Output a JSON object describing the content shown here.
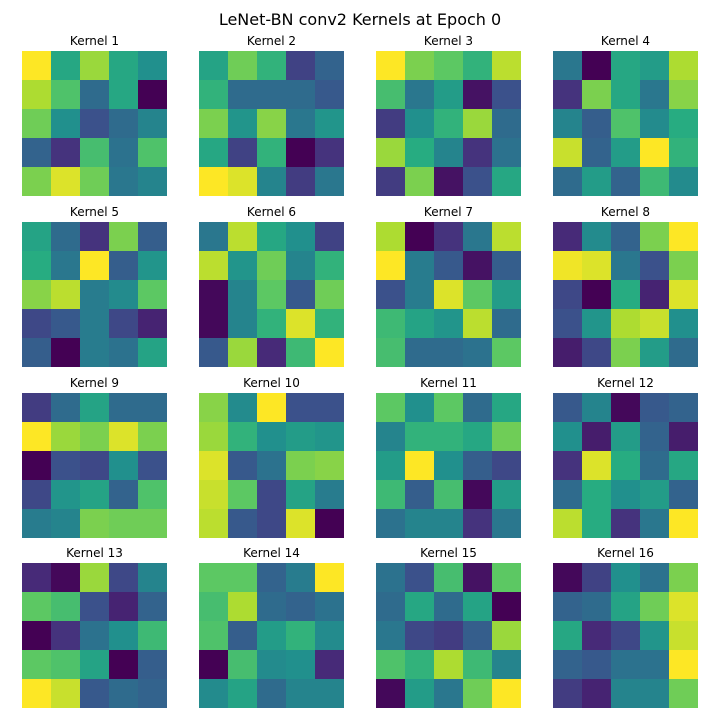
{
  "chart_data": {
    "type": "heatmap",
    "title": "LeNet-BN conv2 Kernels at Epoch 0",
    "colormap": "viridis",
    "value_range": [
      0,
      1
    ],
    "rows": 5,
    "cols": 5,
    "kernels": [
      {
        "title": "Kernel 1",
        "values": [
          [
            1.0,
            0.6,
            0.85,
            0.6,
            0.5
          ],
          [
            0.88,
            0.72,
            0.35,
            0.6,
            0.0
          ],
          [
            0.78,
            0.5,
            0.25,
            0.35,
            0.45
          ],
          [
            0.32,
            0.15,
            0.7,
            0.38,
            0.72
          ],
          [
            0.8,
            0.95,
            0.78,
            0.4,
            0.45
          ]
        ]
      },
      {
        "title": "Kernel 2",
        "values": [
          [
            0.58,
            0.78,
            0.65,
            0.2,
            0.32
          ],
          [
            0.65,
            0.35,
            0.35,
            0.35,
            0.28
          ],
          [
            0.8,
            0.52,
            0.82,
            0.4,
            0.52
          ],
          [
            0.6,
            0.2,
            0.65,
            0.0,
            0.15
          ],
          [
            1.0,
            0.95,
            0.45,
            0.18,
            0.4
          ]
        ]
      },
      {
        "title": "Kernel 3",
        "values": [
          [
            1.0,
            0.8,
            0.75,
            0.65,
            0.9
          ],
          [
            0.7,
            0.4,
            0.55,
            0.05,
            0.25
          ],
          [
            0.18,
            0.5,
            0.65,
            0.85,
            0.35
          ],
          [
            0.85,
            0.62,
            0.45,
            0.15,
            0.38
          ],
          [
            0.18,
            0.8,
            0.05,
            0.25,
            0.6
          ]
        ]
      },
      {
        "title": "Kernel 4",
        "values": [
          [
            0.4,
            0.0,
            0.6,
            0.55,
            0.88
          ],
          [
            0.15,
            0.8,
            0.6,
            0.4,
            0.82
          ],
          [
            0.45,
            0.3,
            0.72,
            0.48,
            0.62
          ],
          [
            0.92,
            0.32,
            0.55,
            1.0,
            0.65
          ],
          [
            0.35,
            0.55,
            0.32,
            0.68,
            0.48
          ]
        ]
      },
      {
        "title": "Kernel 5",
        "values": [
          [
            0.58,
            0.35,
            0.15,
            0.8,
            0.3
          ],
          [
            0.62,
            0.4,
            1.0,
            0.3,
            0.52
          ],
          [
            0.82,
            0.9,
            0.42,
            0.48,
            0.75
          ],
          [
            0.22,
            0.28,
            0.42,
            0.22,
            0.1
          ],
          [
            0.3,
            0.0,
            0.42,
            0.38,
            0.58
          ]
        ]
      },
      {
        "title": "Kernel 6",
        "values": [
          [
            0.4,
            0.9,
            0.6,
            0.5,
            0.2
          ],
          [
            0.9,
            0.52,
            0.78,
            0.45,
            0.65
          ],
          [
            0.02,
            0.45,
            0.75,
            0.28,
            0.78
          ],
          [
            0.02,
            0.45,
            0.65,
            0.95,
            0.65
          ],
          [
            0.28,
            0.85,
            0.12,
            0.68,
            1.0
          ]
        ]
      },
      {
        "title": "Kernel 7",
        "values": [
          [
            0.88,
            0.0,
            0.15,
            0.4,
            0.9
          ],
          [
            1.0,
            0.42,
            0.28,
            0.05,
            0.3
          ],
          [
            0.25,
            0.42,
            0.95,
            0.75,
            0.55
          ],
          [
            0.68,
            0.58,
            0.52,
            0.9,
            0.35
          ],
          [
            0.7,
            0.35,
            0.35,
            0.38,
            0.75
          ]
        ]
      },
      {
        "title": "Kernel 8",
        "values": [
          [
            0.12,
            0.48,
            0.32,
            0.8,
            1.0
          ],
          [
            0.98,
            0.95,
            0.4,
            0.25,
            0.8
          ],
          [
            0.22,
            0.0,
            0.62,
            0.1,
            0.95
          ],
          [
            0.25,
            0.52,
            0.88,
            0.92,
            0.5
          ],
          [
            0.08,
            0.22,
            0.8,
            0.55,
            0.35
          ]
        ]
      },
      {
        "title": "Kernel 9",
        "values": [
          [
            0.18,
            0.35,
            0.58,
            0.35,
            0.35
          ],
          [
            1.0,
            0.85,
            0.8,
            0.95,
            0.8
          ],
          [
            0.0,
            0.25,
            0.22,
            0.5,
            0.25
          ],
          [
            0.22,
            0.52,
            0.58,
            0.32,
            0.72
          ],
          [
            0.42,
            0.45,
            0.8,
            0.78,
            0.78
          ]
        ]
      },
      {
        "title": "Kernel 10",
        "values": [
          [
            0.82,
            0.48,
            1.0,
            0.25,
            0.25
          ],
          [
            0.85,
            0.65,
            0.5,
            0.55,
            0.52
          ],
          [
            0.95,
            0.28,
            0.38,
            0.8,
            0.82
          ],
          [
            0.92,
            0.75,
            0.22,
            0.58,
            0.42
          ],
          [
            0.9,
            0.28,
            0.22,
            0.95,
            0.0
          ]
        ]
      },
      {
        "title": "Kernel 11",
        "values": [
          [
            0.75,
            0.5,
            0.75,
            0.35,
            0.6
          ],
          [
            0.45,
            0.65,
            0.65,
            0.6,
            0.78
          ],
          [
            0.55,
            1.0,
            0.5,
            0.3,
            0.22
          ],
          [
            0.68,
            0.3,
            0.7,
            0.02,
            0.55
          ],
          [
            0.38,
            0.45,
            0.45,
            0.15,
            0.4
          ]
        ]
      },
      {
        "title": "Kernel 12",
        "values": [
          [
            0.28,
            0.45,
            0.02,
            0.28,
            0.32
          ],
          [
            0.5,
            0.08,
            0.55,
            0.32,
            0.08
          ],
          [
            0.15,
            0.95,
            0.62,
            0.35,
            0.6
          ],
          [
            0.35,
            0.62,
            0.5,
            0.55,
            0.32
          ],
          [
            0.9,
            0.62,
            0.15,
            0.4,
            1.0
          ]
        ]
      },
      {
        "title": "Kernel 13",
        "values": [
          [
            0.12,
            0.02,
            0.85,
            0.22,
            0.45
          ],
          [
            0.75,
            0.7,
            0.25,
            0.1,
            0.32
          ],
          [
            0.0,
            0.15,
            0.38,
            0.5,
            0.68
          ],
          [
            0.75,
            0.72,
            0.58,
            0.0,
            0.3
          ],
          [
            1.0,
            0.92,
            0.28,
            0.35,
            0.32
          ]
        ]
      },
      {
        "title": "Kernel 14",
        "values": [
          [
            0.75,
            0.75,
            0.32,
            0.42,
            1.0
          ],
          [
            0.7,
            0.88,
            0.35,
            0.32,
            0.38
          ],
          [
            0.72,
            0.3,
            0.55,
            0.65,
            0.48
          ],
          [
            0.0,
            0.7,
            0.48,
            0.5,
            0.12
          ],
          [
            0.48,
            0.58,
            0.35,
            0.45,
            0.45
          ]
        ]
      },
      {
        "title": "Kernel 15",
        "values": [
          [
            0.38,
            0.25,
            0.7,
            0.05,
            0.75
          ],
          [
            0.35,
            0.6,
            0.35,
            0.58,
            0.0
          ],
          [
            0.4,
            0.22,
            0.18,
            0.3,
            0.85
          ],
          [
            0.72,
            0.65,
            0.88,
            0.68,
            0.45
          ],
          [
            0.02,
            0.55,
            0.4,
            0.78,
            1.0
          ]
        ]
      },
      {
        "title": "Kernel 16",
        "values": [
          [
            0.02,
            0.2,
            0.5,
            0.38,
            0.8
          ],
          [
            0.32,
            0.35,
            0.58,
            0.78,
            0.95
          ],
          [
            0.6,
            0.12,
            0.22,
            0.52,
            0.92
          ],
          [
            0.32,
            0.28,
            0.38,
            0.38,
            1.0
          ],
          [
            0.18,
            0.1,
            0.45,
            0.45,
            0.78
          ]
        ]
      }
    ]
  }
}
